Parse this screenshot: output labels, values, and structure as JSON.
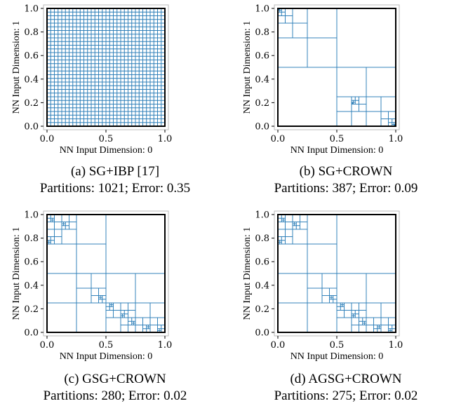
{
  "chart_data": [
    {
      "type": "partition",
      "caption": "(a) SG+IBP [17]",
      "stats": "Partitions: 1021; Error: 0.35",
      "xlabel": "NN Input Dimension: 0",
      "ylabel": "NN Input Dimension: 1",
      "xlim": [
        0,
        1
      ],
      "ylim": [
        0,
        1
      ],
      "xticks": [
        "0.0",
        "0.5",
        "1.0"
      ],
      "yticks": [
        "0.0",
        "0.2",
        "0.4",
        "0.6",
        "0.8",
        "1.0"
      ],
      "grid_divisions": 32
    },
    {
      "type": "partition",
      "caption": "(b) SG+CROWN",
      "stats": "Partitions: 387; Error: 0.09",
      "xlabel": "NN Input Dimension: 0",
      "ylabel": "NN Input Dimension: 1",
      "xlim": [
        0,
        1
      ],
      "ylim": [
        0,
        1
      ],
      "xticks": [
        "0.0",
        "0.5",
        "1.0"
      ],
      "yticks": [
        "0.0",
        "0.2",
        "0.4",
        "0.6",
        "0.8",
        "1.0"
      ],
      "refine_points": [
        [
          0.01,
          0.99
        ],
        [
          0.64,
          0.19
        ],
        [
          0.99,
          0.01
        ]
      ],
      "max_depth": 7
    },
    {
      "type": "partition",
      "caption": "(c) GSG+CROWN",
      "stats": "Partitions: 280; Error: 0.02",
      "xlabel": "NN Input Dimension: 0",
      "ylabel": "NN Input Dimension: 1",
      "xlim": [
        0,
        1
      ],
      "ylim": [
        0,
        1
      ],
      "xticks": [
        "0.0",
        "0.5",
        "1.0"
      ],
      "yticks": [
        "0.0",
        "0.2",
        "0.4",
        "0.6",
        "0.8",
        "1.0"
      ],
      "refine_points": [
        [
          0.05,
          0.95
        ],
        [
          0.15,
          0.93
        ],
        [
          0.03,
          0.75
        ],
        [
          0.45,
          0.3
        ],
        [
          0.55,
          0.22
        ],
        [
          0.65,
          0.15
        ],
        [
          0.72,
          0.08
        ],
        [
          0.85,
          0.04
        ],
        [
          0.96,
          0.02
        ]
      ],
      "max_depth": 6
    },
    {
      "type": "partition",
      "caption": "(d) AGSG+CROWN",
      "stats": "Partitions: 275; Error: 0.02",
      "xlabel": "NN Input Dimension: 0",
      "ylabel": "NN Input Dimension: 1",
      "xlim": [
        0,
        1
      ],
      "ylim": [
        0,
        1
      ],
      "xticks": [
        "0.0",
        "0.5",
        "1.0"
      ],
      "yticks": [
        "0.0",
        "0.2",
        "0.4",
        "0.6",
        "0.8",
        "1.0"
      ],
      "refine_points": [
        [
          0.05,
          0.95
        ],
        [
          0.15,
          0.93
        ],
        [
          0.03,
          0.75
        ],
        [
          0.45,
          0.3
        ],
        [
          0.55,
          0.22
        ],
        [
          0.65,
          0.15
        ],
        [
          0.72,
          0.08
        ],
        [
          0.85,
          0.04
        ],
        [
          0.96,
          0.02
        ]
      ],
      "max_depth": 6
    }
  ],
  "colors": {
    "cell": "#2d7fb8",
    "frame": "#000000"
  }
}
